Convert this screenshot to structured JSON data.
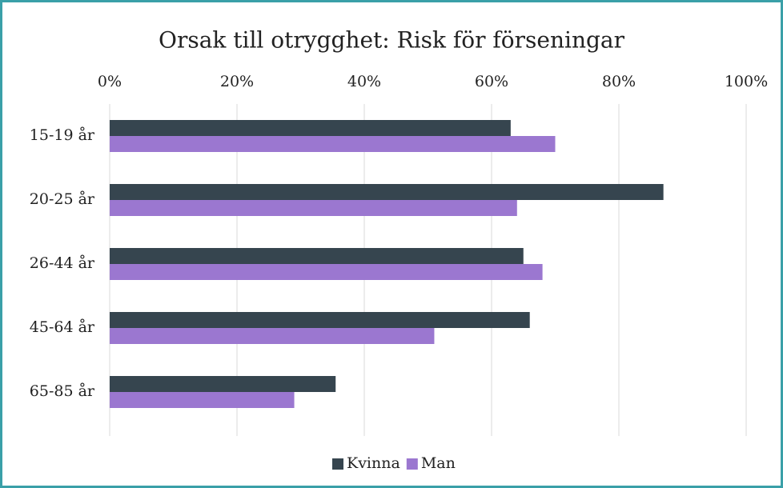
{
  "chart_data": {
    "type": "barh",
    "title": "Orsak till otrygghet: Risk för förseningar",
    "categories": [
      "15-19 år",
      "20-25 år",
      "26-44 år",
      "45-64 år",
      "65-85 år"
    ],
    "series": [
      {
        "name": "Kvinna",
        "color": "#36454f",
        "values": [
          63,
          87,
          65,
          66,
          35.5
        ]
      },
      {
        "name": "Man",
        "color": "#9b77d0",
        "values": [
          70,
          64,
          68,
          51,
          29
        ]
      }
    ],
    "xlim": [
      0,
      100
    ],
    "xticks": [
      {
        "value": 0,
        "label": "0%"
      },
      {
        "value": 20,
        "label": "20%"
      },
      {
        "value": 40,
        "label": "40%"
      },
      {
        "value": 60,
        "label": "60%"
      },
      {
        "value": 80,
        "label": "80%"
      },
      {
        "value": 100,
        "label": "100%"
      }
    ],
    "grid": true,
    "legend": "bottom"
  }
}
